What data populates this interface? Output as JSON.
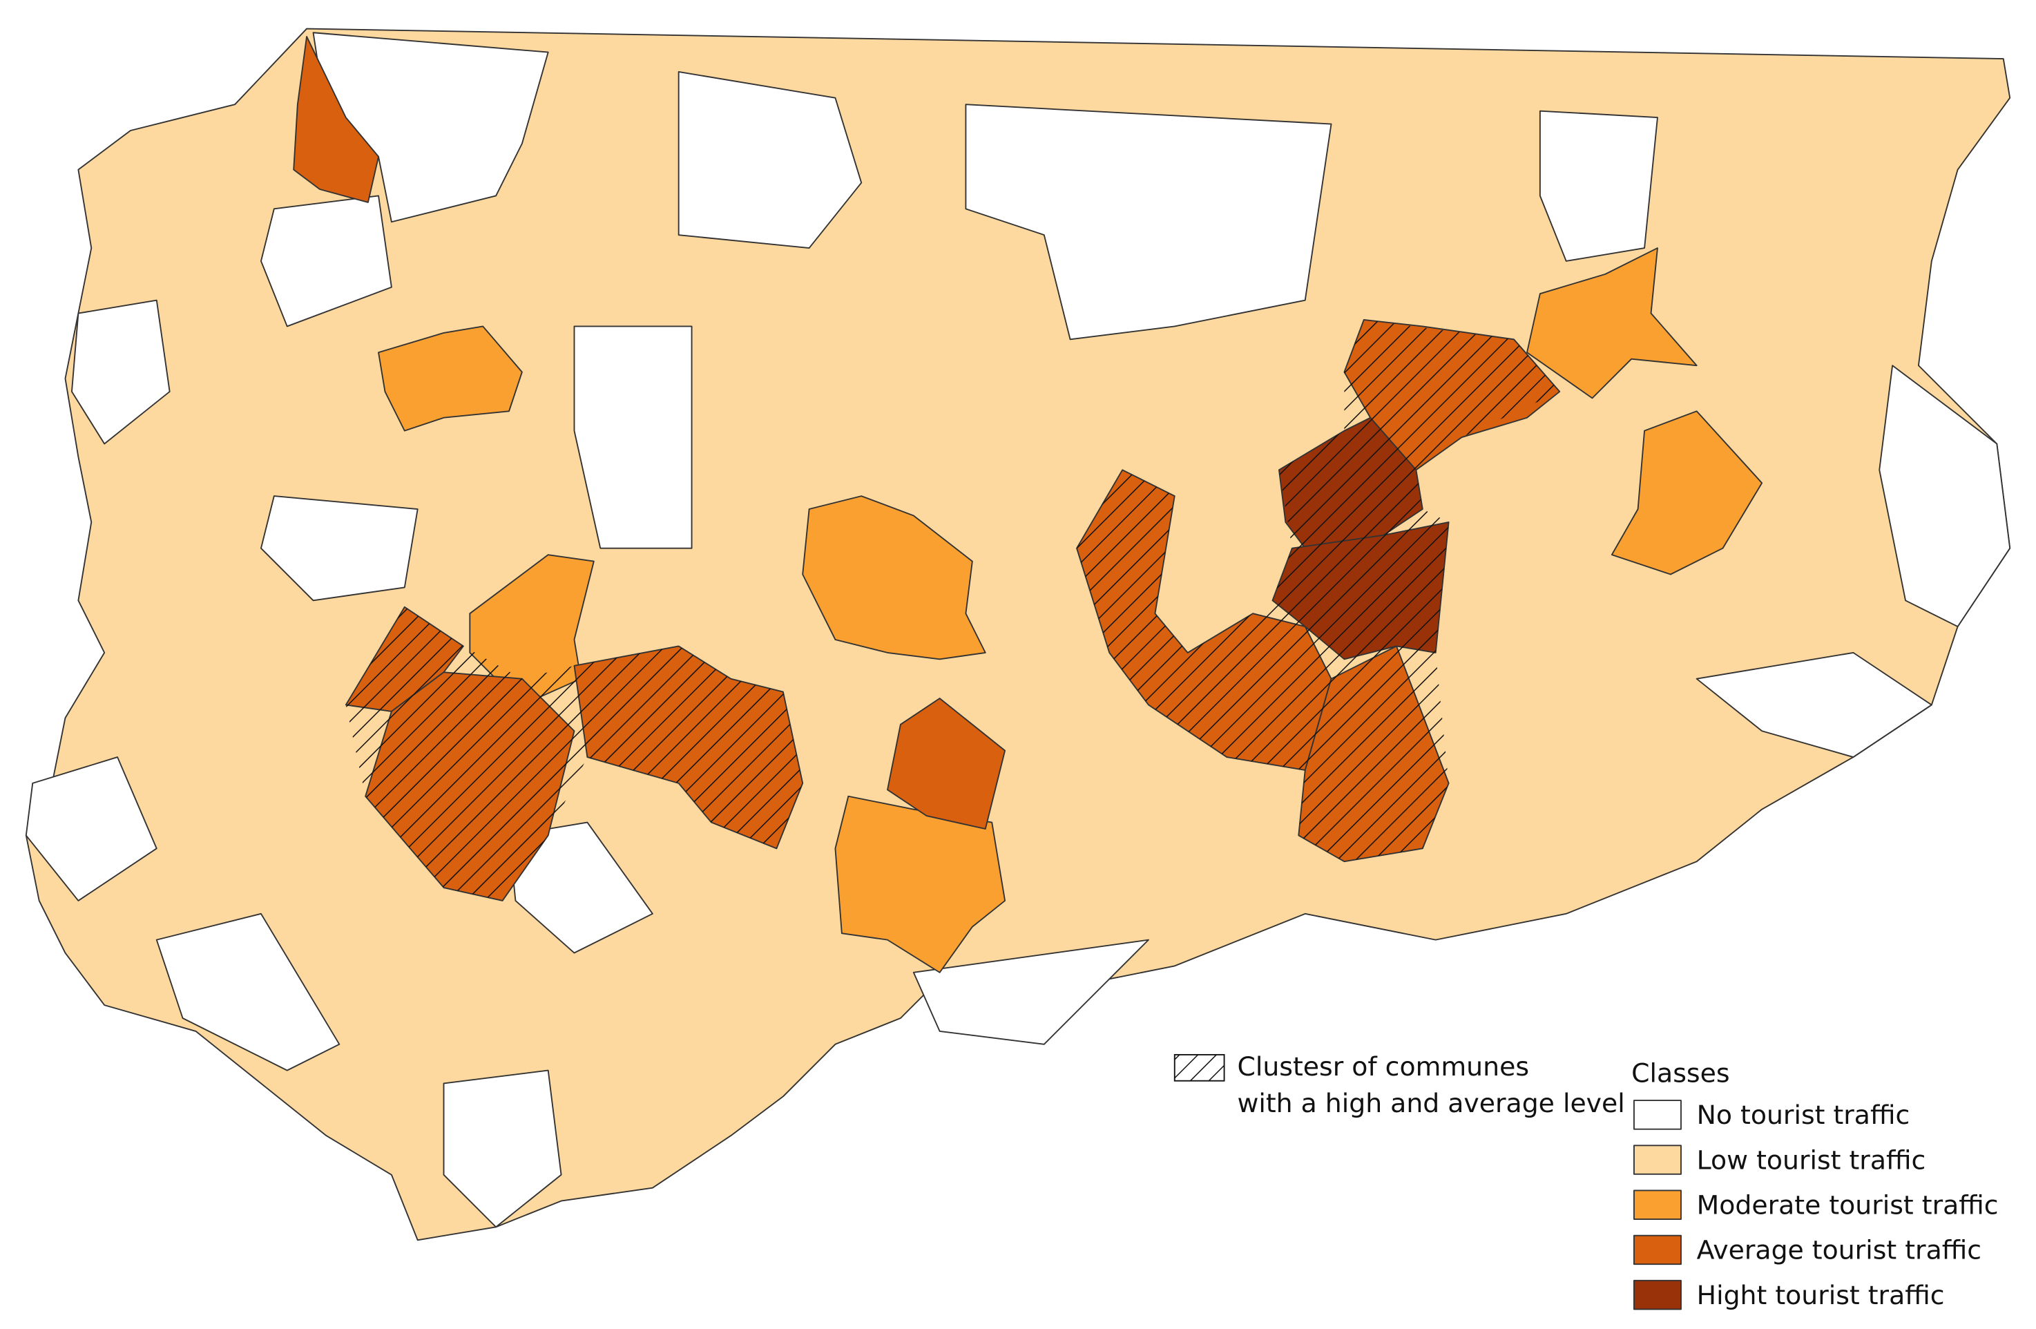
{
  "legend": {
    "cluster_label": [
      "Clustesr of communes",
      "with a high and average level"
    ],
    "classes_title": "Classes",
    "classes": [
      "No tourist traffic",
      "Low tourist traffic",
      "Moderate tourist traffic",
      "Average tourist traffic",
      "Hight tourist traffic"
    ]
  }
}
